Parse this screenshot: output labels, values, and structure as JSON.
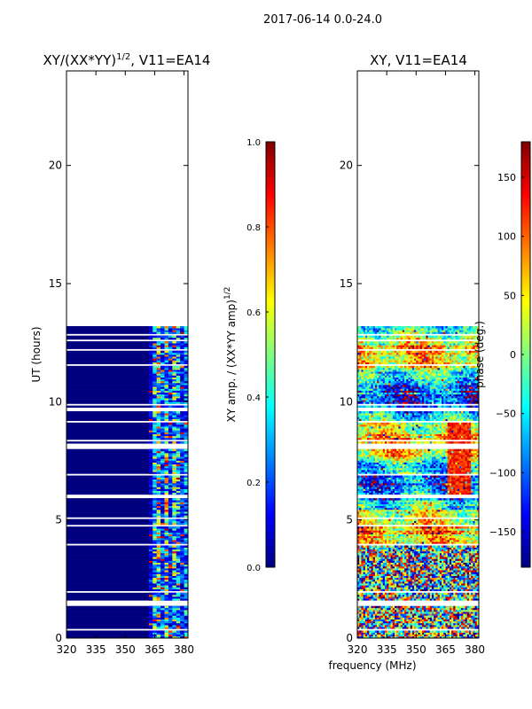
{
  "figure": {
    "suptitle": "2017-06-14 0.0-24.0",
    "xlabel": "frequency (MHz)"
  },
  "colors": {
    "jet": [
      "#00007f",
      "#0000ff",
      "#007fff",
      "#00ffff",
      "#7fff7f",
      "#ffff00",
      "#ff7f00",
      "#ff0000",
      "#7f0000"
    ],
    "background": "#ffffff"
  },
  "chart_data": [
    {
      "type": "heatmap",
      "title_main": "XY/(XX*YY)",
      "title_sup": "1/2",
      "title_tail": ", V11=EA14",
      "xlabel": "",
      "ylabel": "UT (hours)",
      "xlim": [
        320,
        382
      ],
      "ylim": [
        0,
        24
      ],
      "xticks": [
        320,
        335,
        350,
        365,
        380
      ],
      "yticks": [
        0,
        5,
        10,
        15,
        20
      ],
      "data_time_range_hours": [
        0,
        13.2
      ],
      "band_mhz": [
        361,
        382
      ],
      "colorbar": {
        "range": [
          0.0,
          1.0
        ],
        "ticks": [
          "0.0",
          "0.2",
          "0.4",
          "0.6",
          "0.8",
          "1.0"
        ],
        "tick_values": [
          0.0,
          0.2,
          0.4,
          0.6,
          0.8,
          1.0
        ],
        "label_main": "XY amp. / (XX*YY amp)",
        "label_sup": "1/2"
      }
    },
    {
      "type": "heatmap",
      "title_main": "XY, V11=EA14",
      "xlabel": "",
      "ylabel": "",
      "xlim": [
        320,
        382
      ],
      "ylim": [
        0,
        24
      ],
      "xticks": [
        320,
        335,
        350,
        365,
        380
      ],
      "yticks": [
        0,
        5,
        10,
        15,
        20
      ],
      "data_time_range_hours": [
        0,
        13.2
      ],
      "colorbar": {
        "range": [
          -180,
          180
        ],
        "ticks": [
          "−150",
          "−100",
          "−50",
          "0",
          "50",
          "100",
          "150"
        ],
        "tick_values": [
          -150,
          -100,
          -50,
          0,
          50,
          100,
          150
        ],
        "label_main": "phase (deg.)"
      }
    }
  ]
}
